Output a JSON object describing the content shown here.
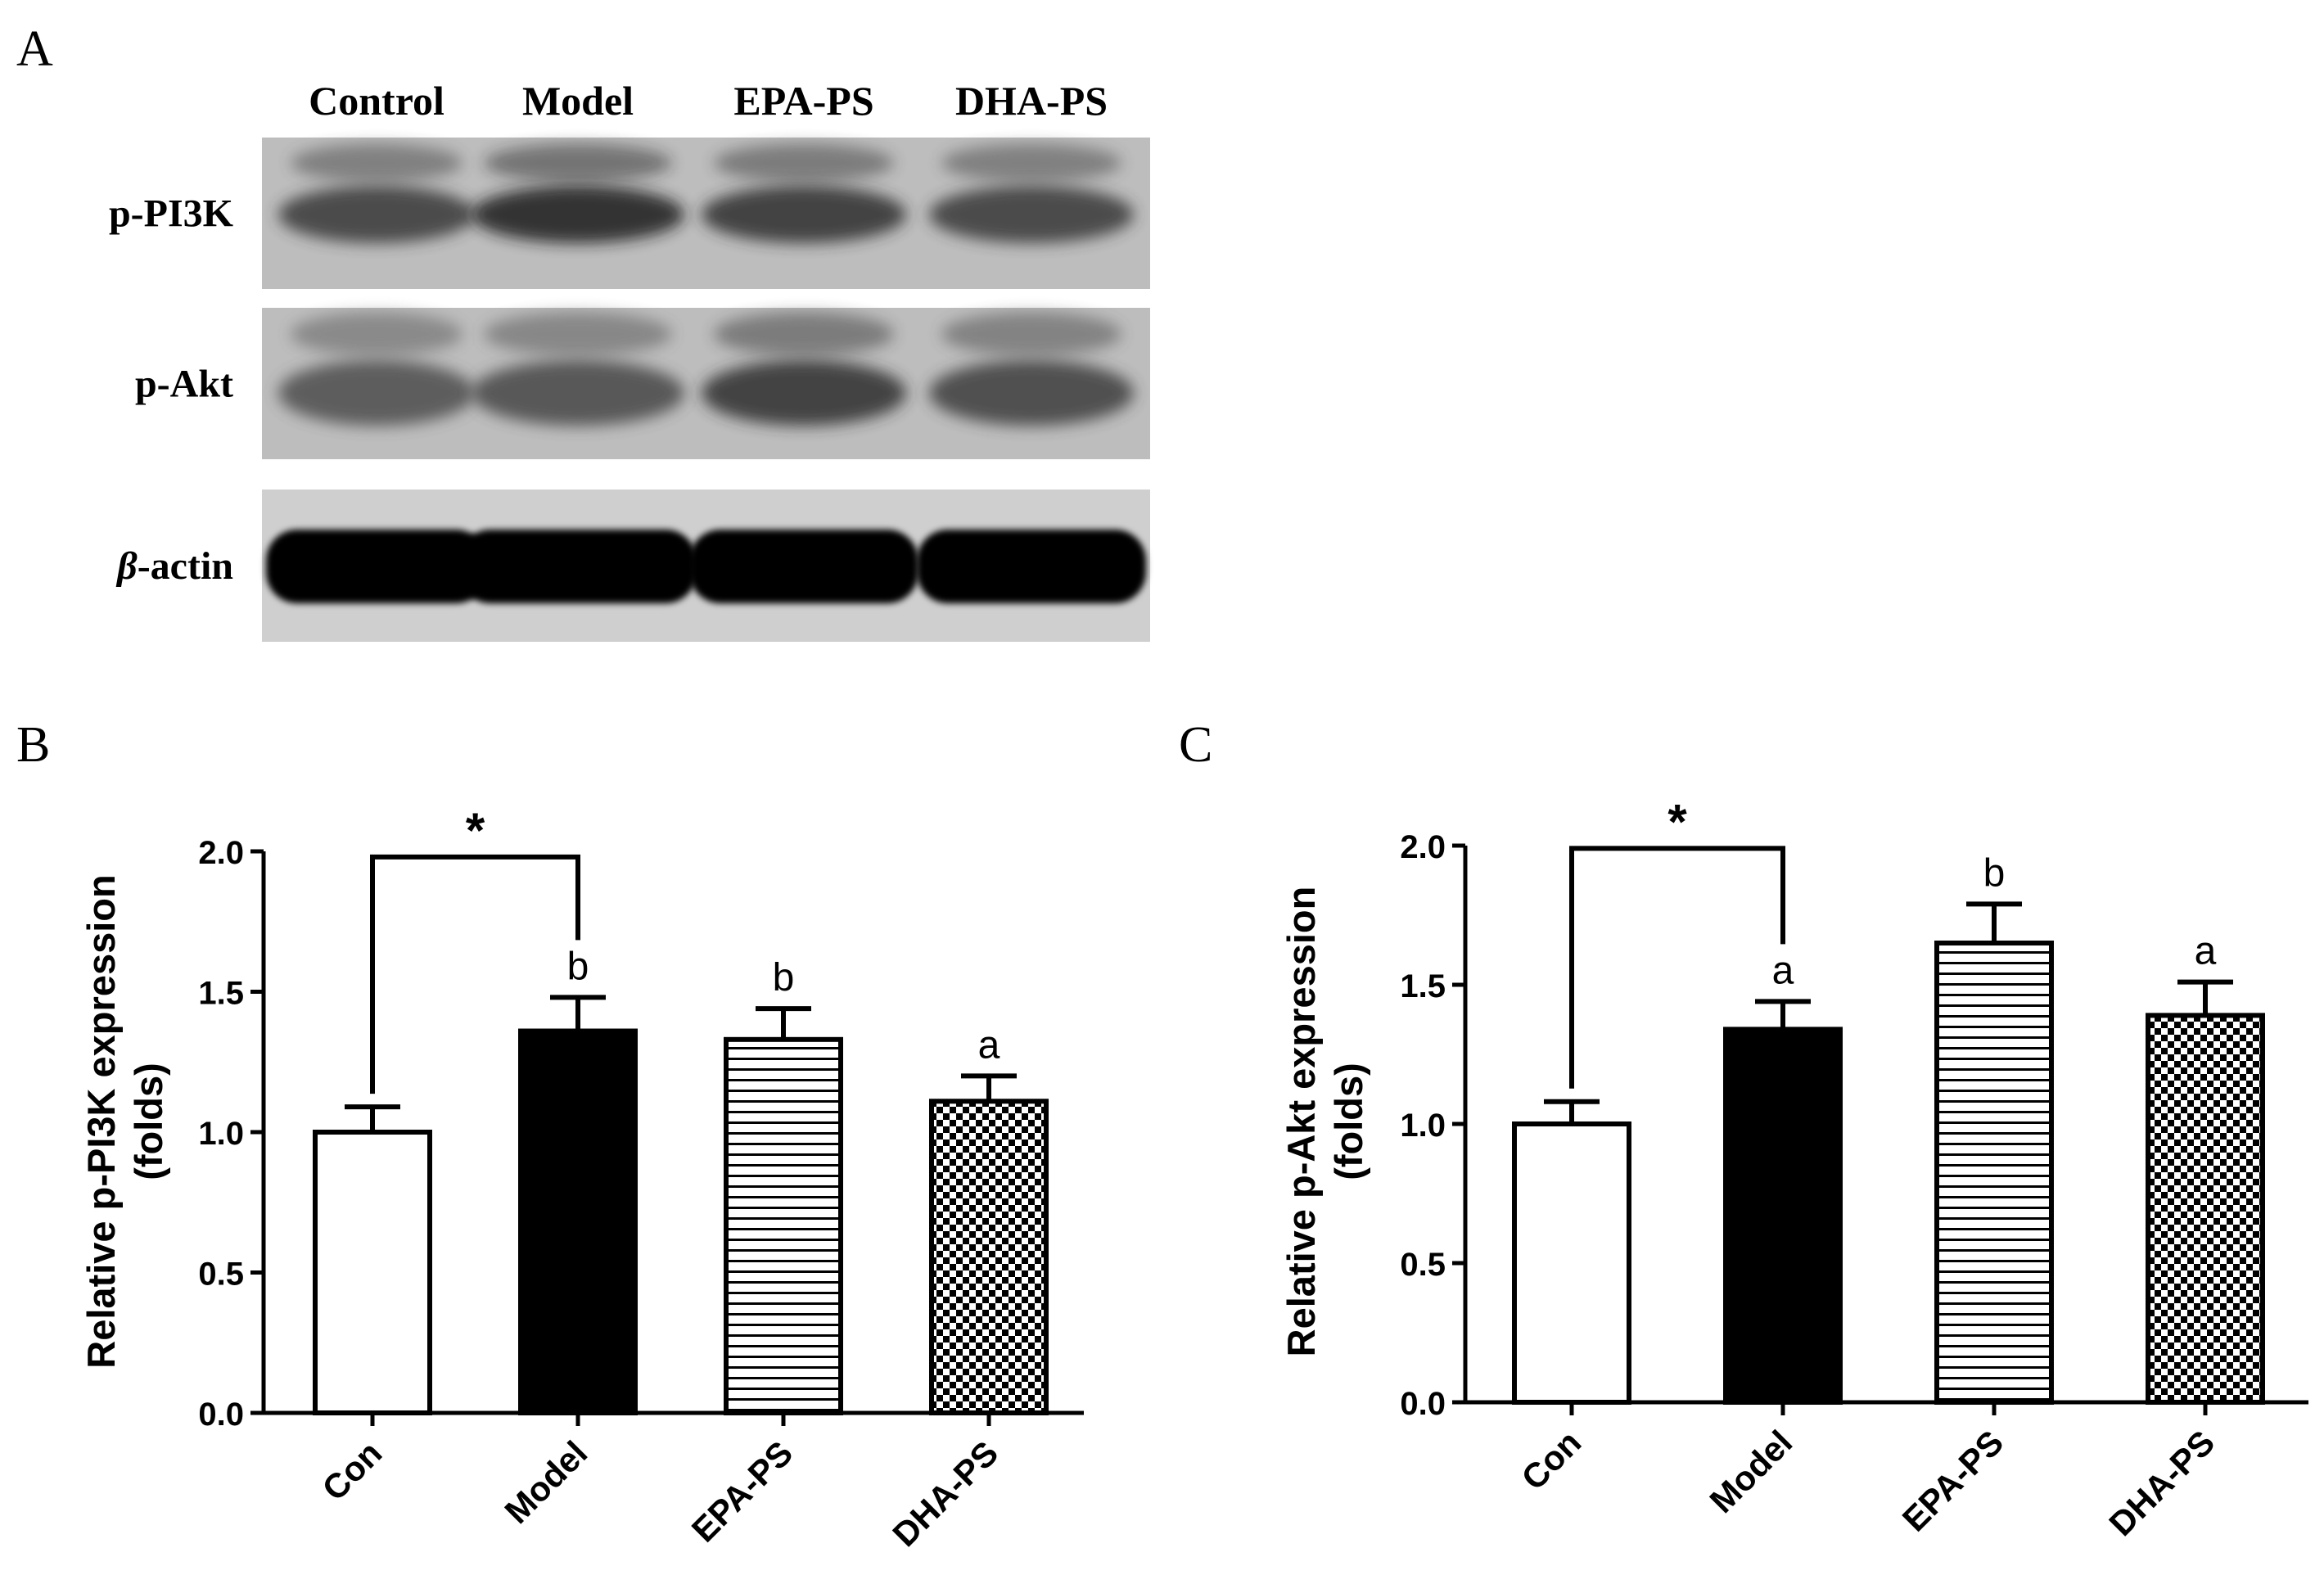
{
  "panel_a": {
    "label": "A",
    "lanes": [
      "Control",
      "Model",
      "EPA-PS",
      "DHA-PS"
    ],
    "blots": [
      {
        "label_prefix": "",
        "label": "p-PI3K",
        "band_darkness": [
          0.78,
          0.88,
          0.82,
          0.78
        ]
      },
      {
        "label_prefix": "",
        "label": "p-Akt",
        "band_darkness": [
          0.7,
          0.72,
          0.82,
          0.76
        ]
      },
      {
        "label_prefix": "β",
        "label": "-actin",
        "band_darkness": [
          1.0,
          1.0,
          1.0,
          1.0
        ]
      }
    ]
  },
  "colors": {
    "bar_stroke": "#000000",
    "model_fill": "#000000",
    "text": "#000000"
  },
  "chart_data": [
    {
      "panel": "B",
      "type": "bar",
      "categories": [
        "Con",
        "Model",
        "EPA-PS",
        "DHA-PS"
      ],
      "values": [
        1.0,
        1.36,
        1.33,
        1.11
      ],
      "errors": [
        0.09,
        0.12,
        0.11,
        0.09
      ],
      "fills": [
        "white",
        "solid",
        "horizontal-stripes",
        "checkerboard"
      ],
      "significance_letters": [
        "",
        "b",
        "b",
        "a"
      ],
      "comparison": {
        "from": "Con",
        "to": "Model",
        "symbol": "*",
        "y": 1.98
      },
      "ylabel_line1": "Relative p-PI3K expression",
      "ylabel_line2": "(folds)",
      "ylim": [
        0,
        2.0
      ],
      "yticks": [
        "0.0",
        "0.5",
        "1.0",
        "1.5",
        "2.0"
      ]
    },
    {
      "panel": "C",
      "type": "bar",
      "categories": [
        "Con",
        "Model",
        "EPA-PS",
        "DHA-PS"
      ],
      "values": [
        1.0,
        1.34,
        1.65,
        1.39
      ],
      "errors": [
        0.08,
        0.1,
        0.14,
        0.12
      ],
      "fills": [
        "white",
        "solid",
        "horizontal-stripes",
        "checkerboard"
      ],
      "significance_letters": [
        "",
        "a",
        "b",
        "a"
      ],
      "comparison": {
        "from": "Con",
        "to": "Model",
        "symbol": "*",
        "y": 1.99
      },
      "ylabel_line1": "Relative p-Akt expression",
      "ylabel_line2": "(folds)",
      "ylim": [
        0,
        2.0
      ],
      "yticks": [
        "0.0",
        "0.5",
        "1.0",
        "1.5",
        "2.0"
      ]
    }
  ]
}
